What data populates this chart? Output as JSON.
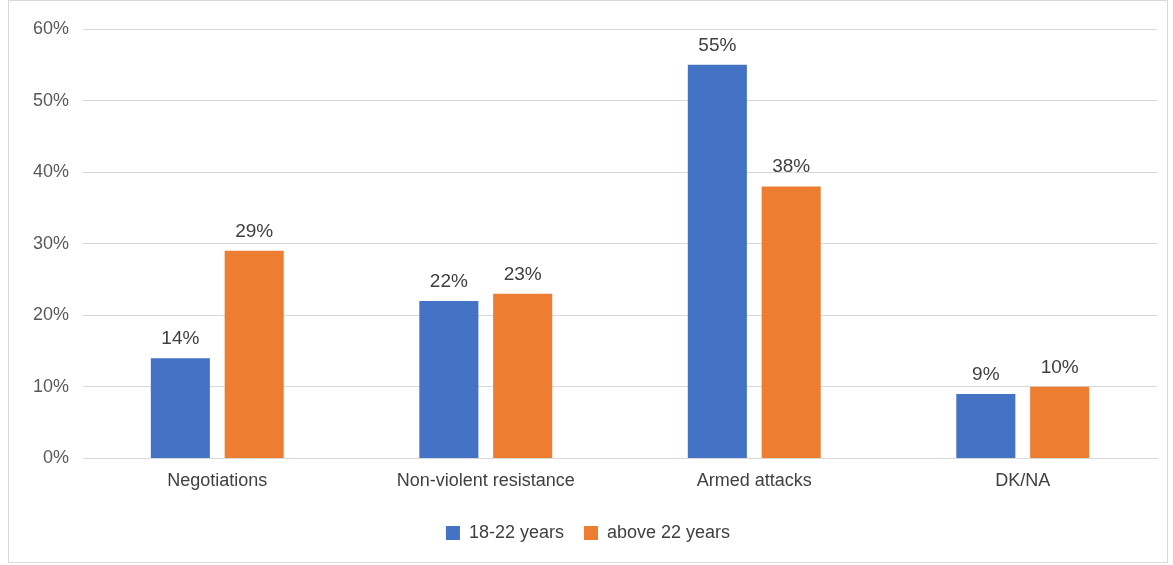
{
  "chart_data": {
    "type": "bar",
    "categories": [
      "Negotiations",
      "Non-violent resistance",
      "Armed attacks",
      "DK/NA"
    ],
    "series": [
      {
        "name": "18-22 years",
        "color": "#4472c4",
        "values": [
          14,
          22,
          55,
          9
        ],
        "value_labels": [
          "14%",
          "22%",
          "55%",
          "9%"
        ]
      },
      {
        "name": "above 22 years",
        "color": "#ed7d31",
        "values": [
          29,
          23,
          38,
          10
        ],
        "value_labels": [
          "29%",
          "23%",
          "38%",
          "10%"
        ]
      }
    ],
    "ylim": [
      0,
      60
    ],
    "yticks": [
      {
        "value": 0,
        "label": "0%"
      },
      {
        "value": 10,
        "label": "10%"
      },
      {
        "value": 20,
        "label": "20%"
      },
      {
        "value": 30,
        "label": "30%"
      },
      {
        "value": 40,
        "label": "40%"
      },
      {
        "value": 50,
        "label": "50%"
      },
      {
        "value": 60,
        "label": "60%"
      }
    ],
    "grid": "y",
    "legend": "bottom"
  }
}
